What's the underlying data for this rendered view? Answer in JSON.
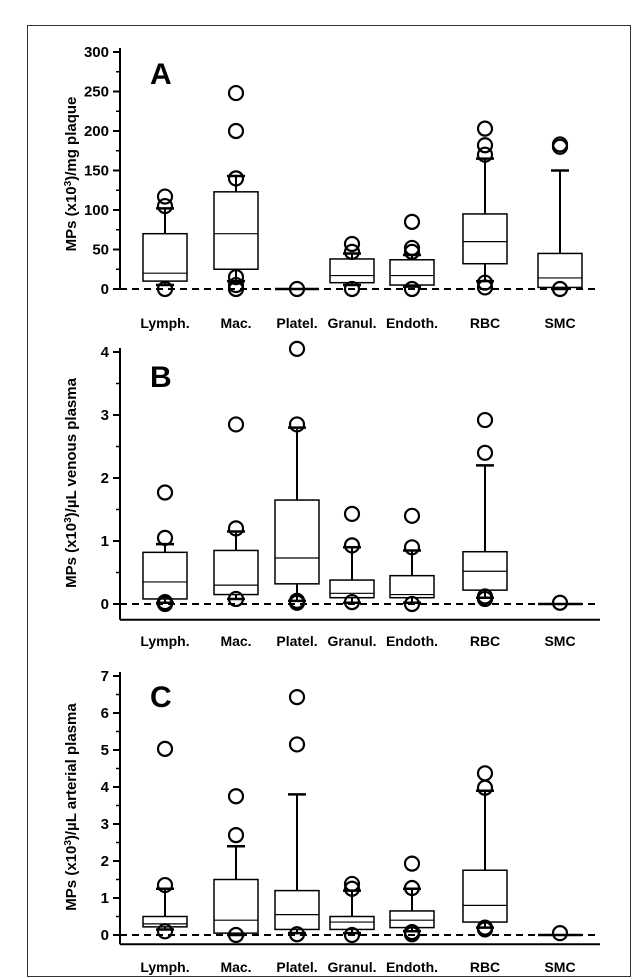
{
  "chart_data": [
    {
      "type": "box",
      "panel_label": "A",
      "ylabel_parts": [
        "MPs (x10",
        "3",
        ")/mg plaque"
      ],
      "ylim": [
        0,
        300
      ],
      "yticks": [
        0,
        50,
        100,
        150,
        200,
        250,
        300
      ],
      "reference_line": 0,
      "categories": [
        "Lymph.",
        "Mac.",
        "Platel.",
        "Granul.",
        "Endoth.",
        "RBC",
        "SMC"
      ],
      "boxes": [
        {
          "category": "Lymph.",
          "whisker_low": 5,
          "q1": 10,
          "median": 20,
          "q3": 70,
          "whisker_high": 102,
          "outliers": [
            0,
            105,
            117
          ]
        },
        {
          "category": "Mac.",
          "whisker_low": 10,
          "q1": 25,
          "median": 70,
          "q3": 123,
          "whisker_high": 143,
          "outliers": [
            0,
            5,
            15,
            140,
            200,
            248
          ]
        },
        {
          "category": "Platel.",
          "whisker_low": 0,
          "q1": 0,
          "median": 0,
          "q3": 0,
          "whisker_high": 0,
          "outliers": [
            0
          ]
        },
        {
          "category": "Granul.",
          "whisker_low": 5,
          "q1": 8,
          "median": 17,
          "q3": 38,
          "whisker_high": 45,
          "outliers": [
            0,
            47,
            57
          ]
        },
        {
          "category": "Endoth.",
          "whisker_low": 3,
          "q1": 5,
          "median": 17,
          "q3": 37,
          "whisker_high": 43,
          "outliers": [
            0,
            47,
            52,
            85
          ]
        },
        {
          "category": "RBC",
          "whisker_low": 10,
          "q1": 32,
          "median": 60,
          "q3": 95,
          "whisker_high": 165,
          "outliers": [
            2,
            8,
            170,
            182,
            203
          ]
        },
        {
          "category": "SMC",
          "whisker_low": 0,
          "q1": 2,
          "median": 14,
          "q3": 45,
          "whisker_high": 150,
          "outliers": [
            0,
            180,
            183
          ]
        }
      ]
    },
    {
      "type": "box",
      "panel_label": "B",
      "ylabel_parts": [
        "MPs (x10",
        "3",
        ")/µL venous plasma"
      ],
      "ylim": [
        -0.25,
        4.5
      ],
      "yticks": [
        0,
        1,
        2,
        3,
        4
      ],
      "reference_line": 0,
      "categories": [
        "Lymph.",
        "Mac.",
        "Platel.",
        "Granul.",
        "Endoth.",
        "RBC",
        "SMC"
      ],
      "boxes": [
        {
          "category": "Lymph.",
          "whisker_low": 0.02,
          "q1": 0.08,
          "median": 0.35,
          "q3": 0.82,
          "whisker_high": 0.95,
          "outliers": [
            0.0,
            0.03,
            1.05,
            1.77
          ]
        },
        {
          "category": "Mac.",
          "whisker_low": 0.08,
          "q1": 0.15,
          "median": 0.3,
          "q3": 0.85,
          "whisker_high": 1.15,
          "outliers": [
            0.08,
            1.2,
            2.85
          ]
        },
        {
          "category": "Platel.",
          "whisker_low": 0.05,
          "q1": 0.32,
          "median": 0.73,
          "q3": 1.65,
          "whisker_high": 2.8,
          "outliers": [
            0.02,
            0.05,
            2.85,
            4.05
          ]
        },
        {
          "category": "Granul.",
          "whisker_low": 0.02,
          "q1": 0.1,
          "median": 0.17,
          "q3": 0.38,
          "whisker_high": 0.9,
          "outliers": [
            0.03,
            0.93,
            1.43
          ]
        },
        {
          "category": "Endoth.",
          "whisker_low": 0.02,
          "q1": 0.1,
          "median": 0.15,
          "q3": 0.45,
          "whisker_high": 0.85,
          "outliers": [
            0.0,
            0.9,
            1.4
          ]
        },
        {
          "category": "RBC",
          "whisker_low": 0.1,
          "q1": 0.22,
          "median": 0.52,
          "q3": 0.83,
          "whisker_high": 2.2,
          "outliers": [
            0.08,
            0.12,
            2.4,
            2.92
          ]
        },
        {
          "category": "SMC",
          "whisker_low": 0.0,
          "q1": 0.0,
          "median": 0.0,
          "q3": 0.0,
          "whisker_high": 0.0,
          "outliers": [
            0.02
          ]
        }
      ]
    },
    {
      "type": "box",
      "panel_label": "C",
      "ylabel_parts": [
        "MPs (x10",
        "3",
        ")/µL arterial plasma"
      ],
      "ylim": [
        -0.25,
        7
      ],
      "yticks": [
        0,
        1,
        2,
        3,
        4,
        5,
        6,
        7
      ],
      "reference_line": 0,
      "categories": [
        "Lymph.",
        "Mac.",
        "Platel.",
        "Granul.",
        "Endoth.",
        "RBC",
        "SMC"
      ],
      "boxes": [
        {
          "category": "Lymph.",
          "whisker_low": 0.15,
          "q1": 0.22,
          "median": 0.3,
          "q3": 0.5,
          "whisker_high": 1.25,
          "outliers": [
            0.1,
            1.35,
            5.03
          ]
        },
        {
          "category": "Mac.",
          "whisker_low": 0.0,
          "q1": 0.05,
          "median": 0.4,
          "q3": 1.5,
          "whisker_high": 2.4,
          "outliers": [
            0.0,
            2.7,
            3.75
          ]
        },
        {
          "category": "Platel.",
          "whisker_low": 0.05,
          "q1": 0.15,
          "median": 0.55,
          "q3": 1.2,
          "whisker_high": 3.8,
          "outliers": [
            0.02,
            5.15,
            6.43
          ]
        },
        {
          "category": "Granul.",
          "whisker_low": 0.05,
          "q1": 0.15,
          "median": 0.35,
          "q3": 0.5,
          "whisker_high": 1.2,
          "outliers": [
            0.0,
            1.25,
            1.38
          ]
        },
        {
          "category": "Endoth.",
          "whisker_low": 0.1,
          "q1": 0.2,
          "median": 0.4,
          "q3": 0.65,
          "whisker_high": 1.25,
          "outliers": [
            0.02,
            0.08,
            1.27,
            1.93
          ]
        },
        {
          "category": "RBC",
          "whisker_low": 0.2,
          "q1": 0.35,
          "median": 0.8,
          "q3": 1.75,
          "whisker_high": 3.9,
          "outliers": [
            0.15,
            0.2,
            3.98,
            4.37
          ]
        },
        {
          "category": "SMC",
          "whisker_low": 0.0,
          "q1": 0.0,
          "median": 0.0,
          "q3": 0.0,
          "whisker_high": 0.0,
          "outliers": [
            0.05
          ]
        }
      ]
    }
  ]
}
